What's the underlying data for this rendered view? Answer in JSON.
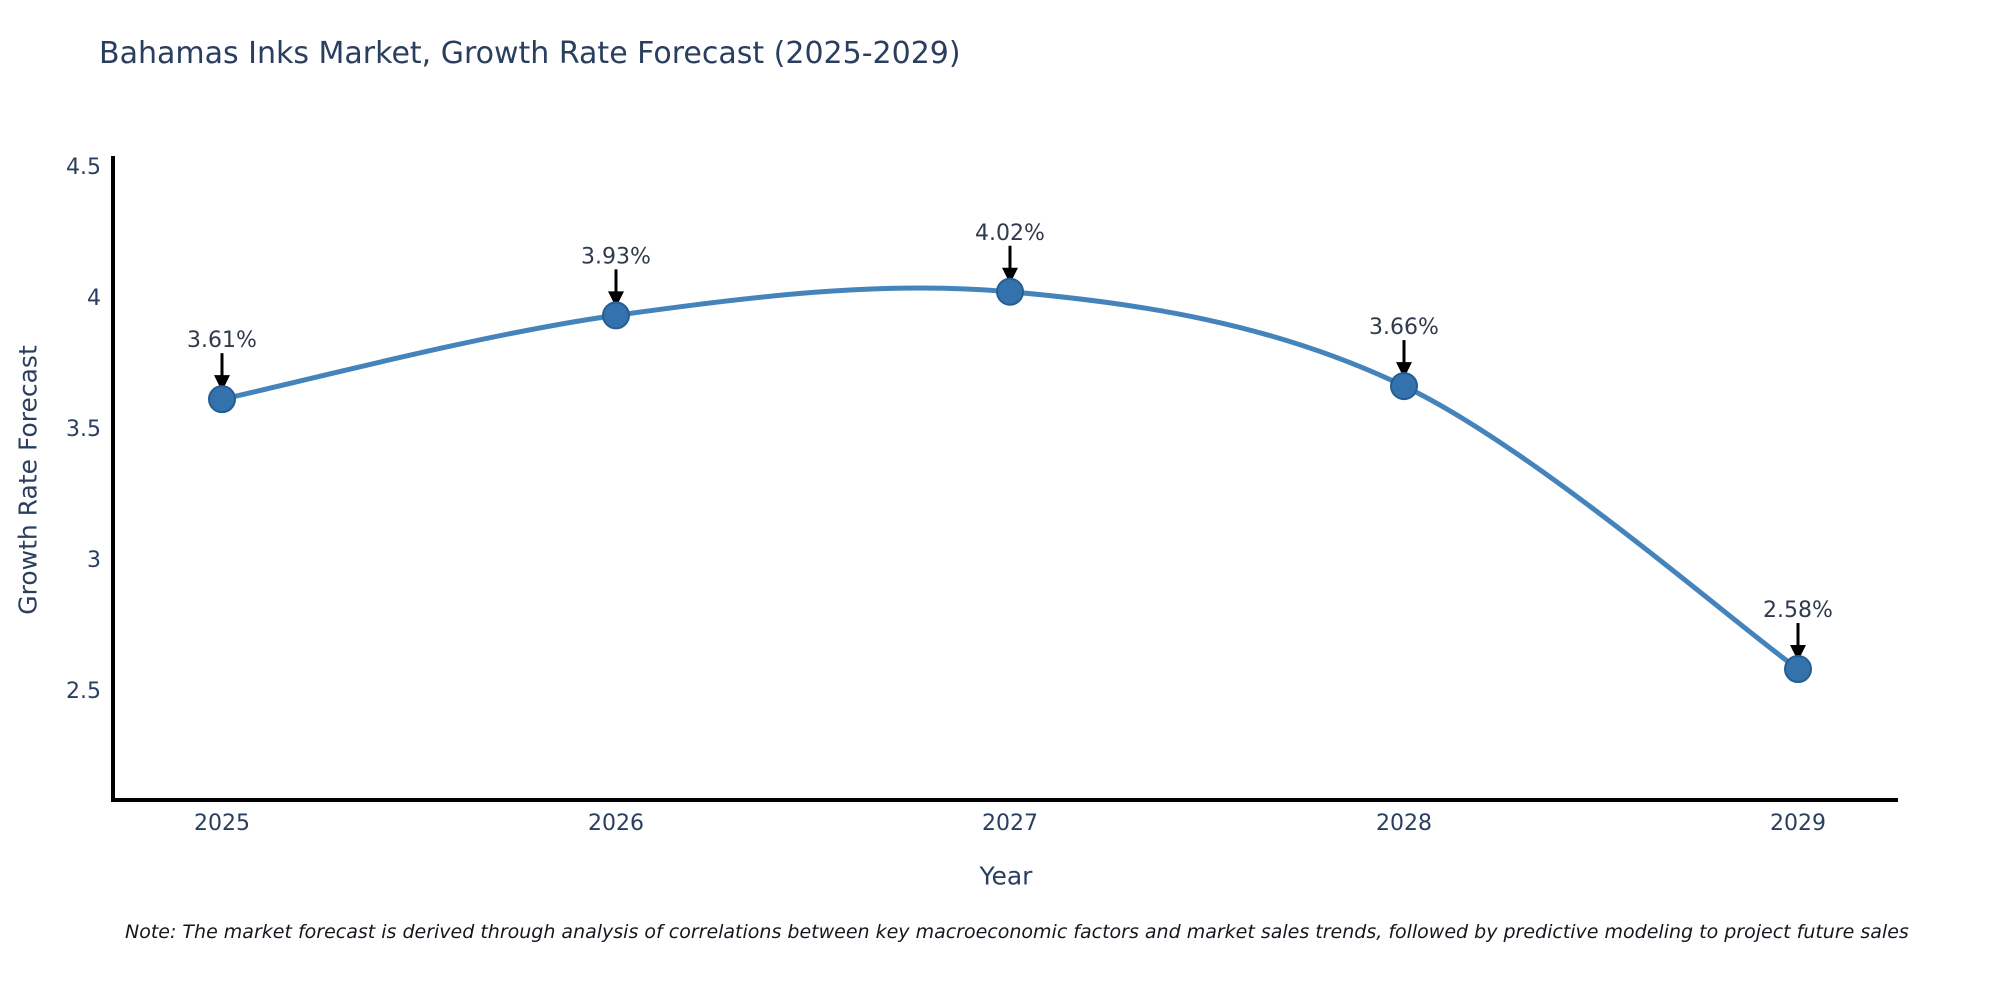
{
  "chart_data": {
    "type": "line",
    "title": "Bahamas Inks Market, Growth Rate Forecast (2025-2029)",
    "xlabel": "Year",
    "ylabel": "Growth Rate Forecast",
    "categories": [
      "2025",
      "2026",
      "2027",
      "2028",
      "2029"
    ],
    "values": [
      3.61,
      3.93,
      4.02,
      3.66,
      2.58
    ],
    "point_labels": [
      "3.61%",
      "3.93%",
      "4.02%",
      "3.66%",
      "2.58%"
    ],
    "yticks": [
      4.5,
      4,
      3.5,
      3,
      2.5
    ],
    "ylim": [
      2.06,
      4.55
    ],
    "grid": false,
    "legend_position": "none",
    "line_shape": "spline",
    "annotation_style": "down-arrow-to-point",
    "note": "Note: The market forecast is derived through analysis of correlations between key macroeconomic factors and market sales trends, followed by predictive modeling to project future sales",
    "colors": {
      "line": "#4583bb",
      "marker_fill": "#3372ad",
      "marker_edge": "#265e92",
      "axis": "#000000",
      "arrow": "#000000",
      "tick_text": "#2a3f5f",
      "title_text": "#2a3f5f",
      "point_label_text": "#2f3b4c",
      "note_text": "#14171c",
      "background": "#ffffff"
    }
  }
}
